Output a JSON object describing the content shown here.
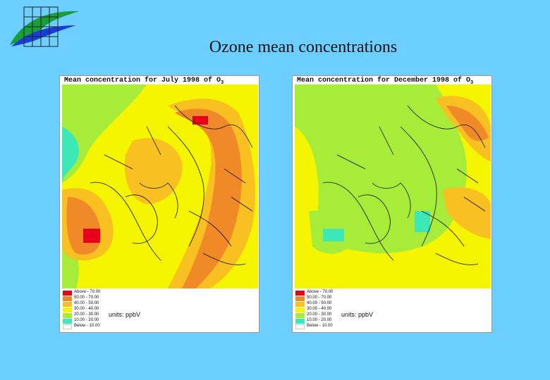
{
  "page": {
    "title": "Ozone mean concentrations",
    "background": "#6ccfff"
  },
  "logo": {
    "icon": "grid-wave-logo-icon",
    "colors": [
      "#1a9e3a",
      "#1a3cd8",
      "#5fe46a"
    ]
  },
  "panels": [
    {
      "title_main": "Mean concentration for July 1998 of O",
      "title_sub": "3",
      "units": "units: ppbV"
    },
    {
      "title_main": "Mean concentration for December 1998 of O",
      "title_sub": "3",
      "units": "units: ppbV"
    }
  ],
  "legend": [
    {
      "lo": "Above",
      "hi": "70.00",
      "color": "#e8001a"
    },
    {
      "lo": "50.00",
      "hi": "70.00",
      "color": "#f08a28"
    },
    {
      "lo": "40.00",
      "hi": "50.00",
      "color": "#f8c020"
    },
    {
      "lo": "30.00",
      "hi": "40.00",
      "color": "#f5f500"
    },
    {
      "lo": "20.00",
      "hi": "30.00",
      "color": "#a8ec3a"
    },
    {
      "lo": "10.00",
      "hi": "20.00",
      "color": "#3ce8b8"
    },
    {
      "lo": "Below",
      "hi": "10.00",
      "color": "#ffffff"
    }
  ]
}
